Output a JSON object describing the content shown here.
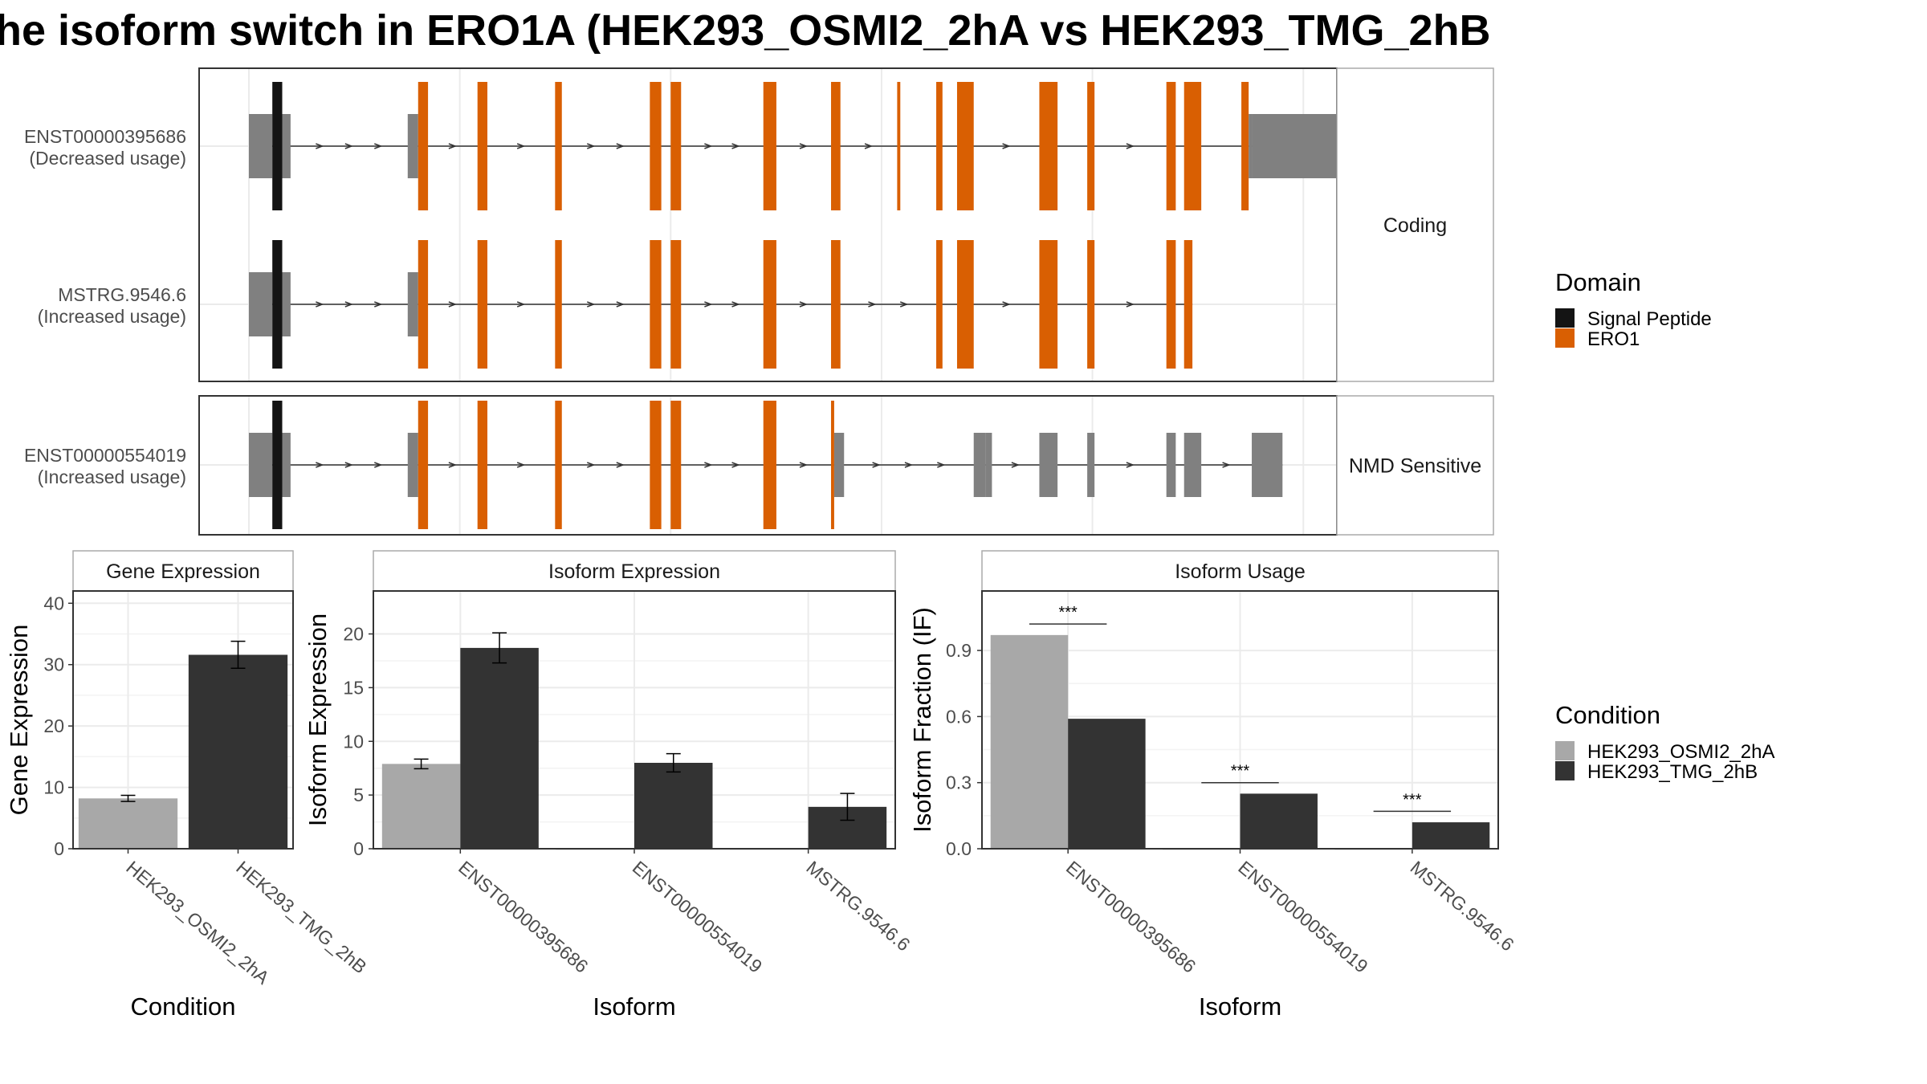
{
  "title": "he isoform switch in ERO1A (HEK293_OSMI2_2hA vs HEK293_TMG_2hB",
  "colors": {
    "signal_peptide": "#141414",
    "ero1": "#d95f02",
    "utr": "#808080",
    "cond_a": "#a8a8a8",
    "cond_b": "#333333",
    "panel_border": "#333333",
    "strip_border": "#aaaaaa",
    "grid": "#ebebeb"
  },
  "structure": {
    "groups": [
      {
        "label": "Coding",
        "transcripts": [
          {
            "id": "ENST00000395686",
            "usage": "(Decreased usage)",
            "exons": [
              {
                "s": 0,
                "e": 45,
                "t": "utr"
              },
              {
                "s": 45,
                "e": 64,
                "t": "signal"
              },
              {
                "s": 64,
                "e": 80,
                "t": "utr"
              },
              {
                "s": 305,
                "e": 325,
                "t": "utr"
              },
              {
                "s": 325,
                "e": 344,
                "t": "ero1"
              },
              {
                "s": 439,
                "e": 458,
                "t": "ero1"
              },
              {
                "s": 588,
                "e": 601,
                "t": "ero1"
              },
              {
                "s": 770,
                "e": 792,
                "t": "ero1"
              },
              {
                "s": 810,
                "e": 830,
                "t": "ero1"
              },
              {
                "s": 988,
                "e": 1013,
                "t": "ero1"
              },
              {
                "s": 1118,
                "e": 1136,
                "t": "ero1"
              },
              {
                "s": 1245,
                "e": 1251,
                "t": "ero1"
              },
              {
                "s": 1320,
                "e": 1332,
                "t": "ero1"
              },
              {
                "s": 1360,
                "e": 1392,
                "t": "ero1"
              },
              {
                "s": 1518,
                "e": 1553,
                "t": "ero1"
              },
              {
                "s": 1610,
                "e": 1624,
                "t": "ero1"
              },
              {
                "s": 1762,
                "e": 1780,
                "t": "ero1"
              },
              {
                "s": 1796,
                "e": 1829,
                "t": "ero1"
              },
              {
                "s": 1906,
                "e": 1920,
                "t": "ero1"
              },
              {
                "s": 1920,
                "e": 1926,
                "t": "utr"
              },
              {
                "s": 1926,
                "e": 2099,
                "t": "utr_big"
              }
            ]
          },
          {
            "id": "MSTRG.9546.6",
            "usage": "(Increased usage)",
            "exons": [
              {
                "s": 0,
                "e": 45,
                "t": "utr"
              },
              {
                "s": 45,
                "e": 64,
                "t": "signal"
              },
              {
                "s": 64,
                "e": 80,
                "t": "utr"
              },
              {
                "s": 305,
                "e": 325,
                "t": "utr"
              },
              {
                "s": 325,
                "e": 344,
                "t": "ero1"
              },
              {
                "s": 439,
                "e": 458,
                "t": "ero1"
              },
              {
                "s": 588,
                "e": 601,
                "t": "ero1"
              },
              {
                "s": 770,
                "e": 792,
                "t": "ero1"
              },
              {
                "s": 810,
                "e": 830,
                "t": "ero1"
              },
              {
                "s": 988,
                "e": 1013,
                "t": "ero1"
              },
              {
                "s": 1118,
                "e": 1136,
                "t": "ero1"
              },
              {
                "s": 1320,
                "e": 1332,
                "t": "ero1"
              },
              {
                "s": 1360,
                "e": 1392,
                "t": "ero1"
              },
              {
                "s": 1518,
                "e": 1553,
                "t": "ero1"
              },
              {
                "s": 1610,
                "e": 1624,
                "t": "ero1"
              },
              {
                "s": 1762,
                "e": 1780,
                "t": "ero1"
              },
              {
                "s": 1796,
                "e": 1812,
                "t": "ero1"
              }
            ]
          }
        ]
      },
      {
        "label": "NMD Sensitive",
        "transcripts": [
          {
            "id": "ENST00000554019",
            "usage": "(Increased usage)",
            "exons": [
              {
                "s": 0,
                "e": 45,
                "t": "utr"
              },
              {
                "s": 45,
                "e": 64,
                "t": "signal"
              },
              {
                "s": 64,
                "e": 80,
                "t": "utr"
              },
              {
                "s": 305,
                "e": 325,
                "t": "utr"
              },
              {
                "s": 325,
                "e": 344,
                "t": "ero1"
              },
              {
                "s": 439,
                "e": 458,
                "t": "ero1"
              },
              {
                "s": 588,
                "e": 601,
                "t": "ero1"
              },
              {
                "s": 770,
                "e": 792,
                "t": "ero1"
              },
              {
                "s": 810,
                "e": 830,
                "t": "ero1"
              },
              {
                "s": 988,
                "e": 1013,
                "t": "ero1"
              },
              {
                "s": 1118,
                "e": 1124,
                "t": "ero1"
              },
              {
                "s": 1124,
                "e": 1143,
                "t": "utr"
              },
              {
                "s": 1392,
                "e": 1415,
                "t": "utr"
              },
              {
                "s": 1415,
                "e": 1427,
                "t": "utr_mid"
              },
              {
                "s": 1518,
                "e": 1553,
                "t": "utr_mid"
              },
              {
                "s": 1610,
                "e": 1624,
                "t": "utr_mid"
              },
              {
                "s": 1762,
                "e": 1780,
                "t": "utr_mid"
              },
              {
                "s": 1796,
                "e": 1829,
                "t": "utr_mid"
              },
              {
                "s": 1926,
                "e": 1985,
                "t": "utr_mid"
              }
            ]
          }
        ]
      }
    ]
  },
  "domain_legend": {
    "title": "Domain",
    "items": [
      {
        "label": "Signal Peptide",
        "color": "#141414"
      },
      {
        "label": "ERO1",
        "color": "#d95f02"
      }
    ]
  },
  "condition_legend": {
    "title": "Condition",
    "items": [
      {
        "label": "HEK293_OSMI2_2hA",
        "color": "#a8a8a8"
      },
      {
        "label": "HEK293_TMG_2hB",
        "color": "#333333"
      }
    ]
  },
  "chart_data": [
    {
      "type": "bar",
      "title": "Gene Expression",
      "xlabel": "Condition",
      "ylabel": "Gene Expression",
      "ylim": [
        0,
        42
      ],
      "yticks": [
        0,
        10,
        20,
        30,
        40
      ],
      "categories": [
        "HEK293_OSMI2_2hA",
        "HEK293_TMG_2hB"
      ],
      "values": [
        8.2,
        31.6
      ],
      "errors": [
        0.5,
        2.2
      ],
      "grid": true
    },
    {
      "type": "bar",
      "title": "Isoform Expression",
      "xlabel": "Isoform",
      "ylabel": "Isoform Expression",
      "ylim": [
        0,
        24
      ],
      "yticks": [
        0,
        5,
        10,
        15,
        20
      ],
      "categories": [
        "ENST00000395686",
        "ENST00000554019",
        "MSTRG.9546.6"
      ],
      "series": [
        {
          "name": "HEK293_OSMI2_2hA",
          "values": [
            7.9,
            0.0,
            0.0
          ],
          "errors": [
            0.45,
            0.0,
            0.0
          ]
        },
        {
          "name": "HEK293_TMG_2hB",
          "values": [
            18.7,
            8.0,
            3.9
          ],
          "errors": [
            1.4,
            0.85,
            1.25
          ]
        }
      ],
      "grid": true
    },
    {
      "type": "bar",
      "title": "Isoform Usage",
      "xlabel": "Isoform",
      "ylabel": "Isoform Fraction (IF)",
      "ylim": [
        0,
        1.17
      ],
      "yticks": [
        "0.0",
        "0.3",
        "0.6",
        "0.9"
      ],
      "categories": [
        "ENST00000395686",
        "ENST00000554019",
        "MSTRG.9546.6"
      ],
      "series": [
        {
          "name": "HEK293_OSMI2_2hA",
          "values": [
            0.97,
            0.0,
            0.0
          ]
        },
        {
          "name": "HEK293_TMG_2hB",
          "values": [
            0.59,
            0.25,
            0.12
          ]
        }
      ],
      "significance": [
        "***",
        "***",
        "***"
      ],
      "sig_levels": [
        1.02,
        0.3,
        0.17
      ],
      "grid": true
    }
  ]
}
